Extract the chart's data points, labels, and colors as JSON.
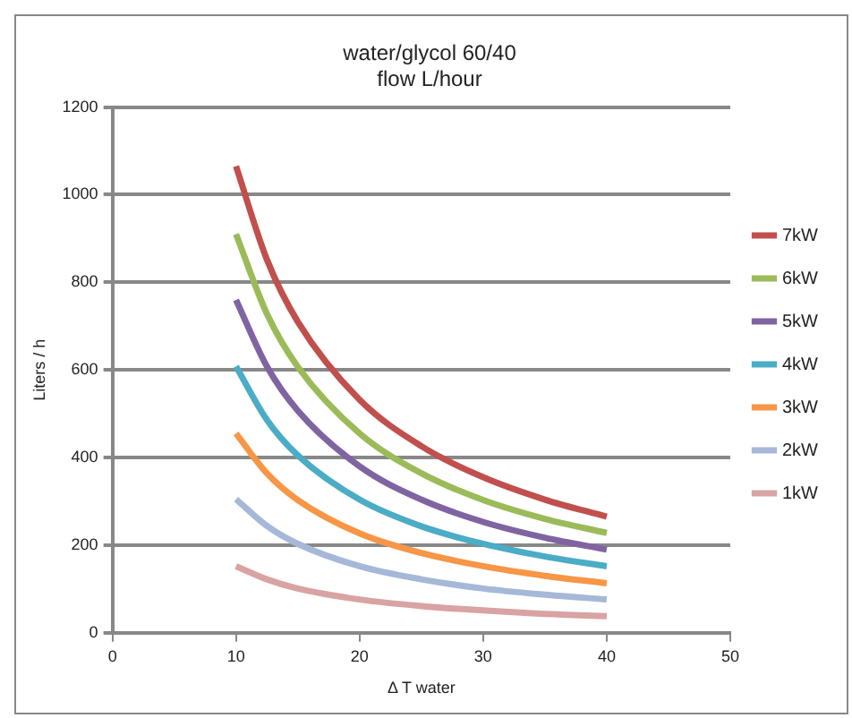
{
  "chart_data": {
    "type": "line",
    "title": [
      "water/glycol 60/40",
      "flow L/hour"
    ],
    "xlabel": "Δ T water",
    "ylabel": "Liters / h",
    "x": [
      10,
      12.5,
      15,
      20,
      25,
      30,
      35,
      40
    ],
    "series": [
      {
        "name": "7kW",
        "color": "#c0504d",
        "values": [
          1065,
          852,
          710,
          532,
          426,
          355,
          304,
          265
        ]
      },
      {
        "name": "6kW",
        "color": "#9bbb59",
        "values": [
          910,
          728,
          607,
          455,
          364,
          303,
          260,
          228
        ]
      },
      {
        "name": "5kW",
        "color": "#8064a2",
        "values": [
          760,
          608,
          507,
          380,
          304,
          253,
          217,
          190
        ]
      },
      {
        "name": "4kW",
        "color": "#4bacc6",
        "values": [
          608,
          486,
          405,
          304,
          243,
          203,
          174,
          152
        ]
      },
      {
        "name": "3kW",
        "color": "#f79646",
        "values": [
          455,
          364,
          303,
          227,
          182,
          152,
          130,
          113
        ]
      },
      {
        "name": "2kW",
        "color": "#a5b8d8",
        "values": [
          305,
          244,
          203,
          152,
          122,
          101,
          87,
          76
        ]
      },
      {
        "name": "1kW",
        "color": "#d9a3a3",
        "values": [
          152,
          122,
          101,
          76,
          61,
          51,
          43,
          38
        ]
      }
    ],
    "xlim": [
      0,
      50
    ],
    "xticks": [
      0,
      10,
      20,
      30,
      40,
      50
    ],
    "ylim": [
      0,
      1200
    ],
    "yticks": [
      0,
      200,
      400,
      600,
      800,
      1000,
      1200
    ],
    "grid": "y",
    "legend": "right",
    "marker": "none",
    "line_style": "solid"
  }
}
